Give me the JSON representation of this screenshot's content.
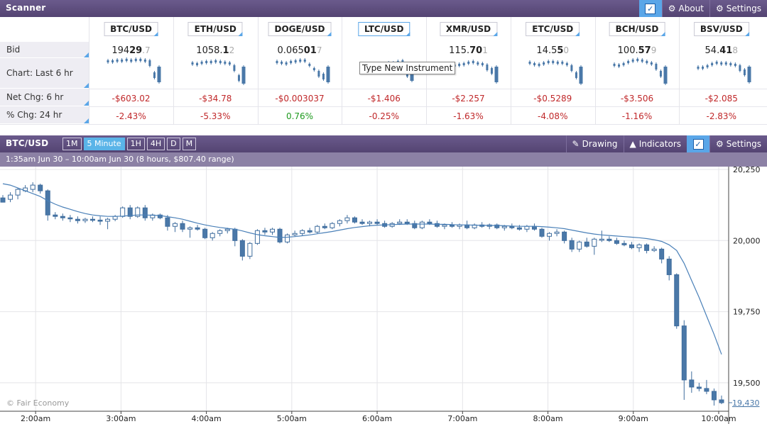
{
  "scanner": {
    "title": "Scanner",
    "about_label": "About",
    "settings_label": "Settings",
    "row_labels": {
      "bid": "Bid",
      "chart": "Chart: Last 6 hr",
      "net": "Net Chg: 6 hr",
      "pct": "% Chg: 24 hr"
    },
    "tooltip": "Type New Instrument",
    "instruments": [
      {
        "symbol": "BTC/USD",
        "bid_main": "194",
        "bid_bold": "29",
        "bid_pip": ".7",
        "net": "-$603.02",
        "pct": "-2.43%",
        "pct_dir": "neg",
        "spark": [
          5,
          5,
          4,
          4,
          3,
          4,
          3,
          3,
          4,
          5,
          22,
          30
        ]
      },
      {
        "symbol": "ETH/USD",
        "bid_main": "1058.",
        "bid_bold": "1",
        "bid_pip": "2",
        "net": "-$34.78",
        "pct": "-5.33%",
        "pct_dir": "neg",
        "spark": [
          8,
          9,
          7,
          6,
          6,
          5,
          6,
          7,
          8,
          12,
          26,
          32
        ]
      },
      {
        "symbol": "DOGE/USD",
        "bid_main": "0.065",
        "bid_bold": "01",
        "bid_pip": "7",
        "net": "-$0.003037",
        "pct": "0.76%",
        "pct_dir": "pos",
        "spark": [
          6,
          7,
          8,
          6,
          5,
          4,
          4,
          10,
          16,
          20,
          24,
          30
        ]
      },
      {
        "symbol": "LTC/USD",
        "bid_main": "",
        "bid_bold": "",
        "bid_pip": "",
        "net": "-$1.406",
        "pct": "-0.25%",
        "pct_dir": "neg",
        "spark": [
          12,
          12,
          11,
          10,
          10,
          9,
          8,
          8,
          6,
          5,
          20,
          28
        ]
      },
      {
        "symbol": "XMR/USD",
        "bid_main": "115.",
        "bid_bold": "70",
        "bid_pip": "1",
        "net": "-$2.257",
        "pct": "-1.63%",
        "pct_dir": "neg",
        "spark": [
          12,
          13,
          11,
          10,
          9,
          7,
          6,
          8,
          9,
          11,
          16,
          30
        ]
      },
      {
        "symbol": "ETC/USD",
        "bid_main": "14.5",
        "bid_bold": "5",
        "bid_pip": "0",
        "net": "-$0.5289",
        "pct": "-4.08%",
        "pct_dir": "neg",
        "spark": [
          7,
          9,
          10,
          8,
          6,
          6,
          7,
          7,
          9,
          12,
          22,
          32
        ]
      },
      {
        "symbol": "BCH/USD",
        "bid_main": "100.",
        "bid_bold": "57",
        "bid_pip": "9",
        "net": "-$3.506",
        "pct": "-1.16%",
        "pct_dir": "neg",
        "spark": [
          10,
          11,
          9,
          6,
          4,
          3,
          4,
          6,
          8,
          10,
          20,
          32
        ]
      },
      {
        "symbol": "BSV/USD",
        "bid_main": "54.",
        "bid_bold": "41",
        "bid_pip": "8",
        "net": "-$2.085",
        "pct": "-2.83%",
        "pct_dir": "neg",
        "spark": [
          14,
          14,
          12,
          9,
          7,
          8,
          8,
          9,
          10,
          12,
          18,
          30
        ]
      }
    ]
  },
  "chart_panel": {
    "symbol": "BTC/USD",
    "timeframes": [
      "1M",
      "5 Minute",
      "1H",
      "4H",
      "D",
      "M"
    ],
    "active_timeframe": "5 Minute",
    "drawing_label": "Drawing",
    "indicators_label": "Indicators",
    "settings_label": "Settings",
    "range_text": "1:35am Jun 30 – 10:00am Jun 30 (8 hours, $807.40 range)",
    "watermark": "© Fair Economy"
  },
  "chart_data": {
    "type": "candlestick",
    "ylim": [
      19400,
      20260
    ],
    "yticks": [
      "20,250",
      "20,000",
      "19,750",
      "19,500"
    ],
    "ytick_values": [
      20250,
      20000,
      19750,
      19500
    ],
    "last_price_label": "19,430",
    "last_price": 19430,
    "xticks": [
      "2:00am",
      "3:00am",
      "4:00am",
      "5:00am",
      "6:00am",
      "7:00am",
      "8:00am",
      "9:00am",
      "10:00am"
    ],
    "xtick_hours": [
      2,
      3,
      4,
      5,
      6,
      7,
      8,
      9,
      10
    ],
    "x_start_hour": 1.583,
    "x_end_hour": 10.0,
    "candles": [
      [
        20150,
        20160,
        20140,
        20135
      ],
      [
        20145,
        20170,
        20135,
        20160
      ],
      [
        20160,
        20185,
        20145,
        20180
      ],
      [
        20175,
        20195,
        20170,
        20185
      ],
      [
        20180,
        20205,
        20170,
        20195
      ],
      [
        20195,
        20200,
        20165,
        20175
      ],
      [
        20175,
        20180,
        20070,
        20090
      ],
      [
        20090,
        20100,
        20075,
        20085
      ],
      [
        20085,
        20095,
        20070,
        20080
      ],
      [
        20080,
        20090,
        20065,
        20078
      ],
      [
        20075,
        20085,
        20060,
        20070
      ],
      [
        20070,
        20080,
        20062,
        20075
      ],
      [
        20075,
        20085,
        20065,
        20072
      ],
      [
        20072,
        20085,
        20055,
        20068
      ],
      [
        20068,
        20080,
        20040,
        20075
      ],
      [
        20075,
        20090,
        20068,
        20085
      ],
      [
        20085,
        20120,
        20080,
        20115
      ],
      [
        20115,
        20125,
        20075,
        20085
      ],
      [
        20085,
        20120,
        20080,
        20115
      ],
      [
        20115,
        20125,
        20070,
        20080
      ],
      [
        20080,
        20095,
        20070,
        20090
      ],
      [
        20090,
        20095,
        20075,
        20080
      ],
      [
        20080,
        20090,
        20035,
        20050
      ],
      [
        20050,
        20065,
        20030,
        20060
      ],
      [
        20060,
        20070,
        20030,
        20040
      ],
      [
        20040,
        20050,
        20010,
        20045
      ],
      [
        20045,
        20055,
        20035,
        20040
      ],
      [
        20040,
        20045,
        20005,
        20010
      ],
      [
        20010,
        20030,
        20000,
        20025
      ],
      [
        20025,
        20040,
        20015,
        20035
      ],
      [
        20035,
        20045,
        20025,
        20040
      ],
      [
        20040,
        20045,
        19980,
        20000
      ],
      [
        20000,
        20005,
        19930,
        19945
      ],
      [
        19945,
        19995,
        19935,
        19990
      ],
      [
        19990,
        20040,
        19985,
        20035
      ],
      [
        20035,
        20045,
        20020,
        20030
      ],
      [
        20030,
        20045,
        20020,
        20040
      ],
      [
        20040,
        20045,
        19990,
        19995
      ],
      [
        19995,
        20025,
        19990,
        20020
      ],
      [
        20020,
        20035,
        20015,
        20025
      ],
      [
        20025,
        20040,
        20018,
        20035
      ],
      [
        20035,
        20045,
        20025,
        20030
      ],
      [
        20030,
        20055,
        20025,
        20050
      ],
      [
        20050,
        20060,
        20040,
        20045
      ],
      [
        20045,
        20065,
        20040,
        20060
      ],
      [
        20060,
        20075,
        20050,
        20070
      ],
      [
        20070,
        20090,
        20060,
        20080
      ],
      [
        20080,
        20085,
        20060,
        20065
      ],
      [
        20065,
        20075,
        20055,
        20060
      ],
      [
        20060,
        20070,
        20050,
        20065
      ],
      [
        20065,
        20075,
        20055,
        20060
      ],
      [
        20060,
        20070,
        20045,
        20050
      ],
      [
        20050,
        20065,
        20045,
        20060
      ],
      [
        20060,
        20075,
        20055,
        20065
      ],
      [
        20065,
        20075,
        20055,
        20060
      ],
      [
        20060,
        20070,
        20040,
        20045
      ],
      [
        20045,
        20070,
        20040,
        20065
      ],
      [
        20065,
        20075,
        20055,
        20060
      ],
      [
        20060,
        20070,
        20045,
        20050
      ],
      [
        20050,
        20060,
        20040,
        20055
      ],
      [
        20055,
        20065,
        20045,
        20050
      ],
      [
        20050,
        20060,
        20040,
        20055
      ],
      [
        20055,
        20070,
        20040,
        20045
      ],
      [
        20045,
        20060,
        20040,
        20055
      ],
      [
        20055,
        20065,
        20045,
        20050
      ],
      [
        20050,
        20060,
        20040,
        20055
      ],
      [
        20055,
        20060,
        20040,
        20045
      ],
      [
        20045,
        20055,
        20035,
        20050
      ],
      [
        20050,
        20060,
        20040,
        20045
      ],
      [
        20045,
        20055,
        20035,
        20040
      ],
      [
        20040,
        20055,
        20030,
        20050
      ],
      [
        20050,
        20060,
        20035,
        20040
      ],
      [
        20040,
        20045,
        20010,
        20015
      ],
      [
        20015,
        20030,
        20000,
        20025
      ],
      [
        20025,
        20040,
        20015,
        20030
      ],
      [
        20030,
        20035,
        19990,
        20000
      ],
      [
        20000,
        20010,
        19960,
        19970
      ],
      [
        19970,
        20000,
        19960,
        19995
      ],
      [
        19995,
        20010,
        19975,
        19980
      ],
      [
        19980,
        20010,
        19950,
        20005
      ],
      [
        20005,
        20035,
        19995,
        20005
      ],
      [
        20005,
        20015,
        19995,
        20000
      ],
      [
        20000,
        20010,
        19985,
        19990
      ],
      [
        19990,
        20000,
        19980,
        19985
      ],
      [
        19985,
        19995,
        19970,
        19975
      ],
      [
        19975,
        19990,
        19960,
        19985
      ],
      [
        19985,
        19990,
        19955,
        19965
      ],
      [
        19965,
        19980,
        19960,
        19970
      ],
      [
        19970,
        19975,
        19920,
        19935
      ],
      [
        19935,
        19945,
        19860,
        19880
      ],
      [
        19880,
        19885,
        19690,
        19700
      ],
      [
        19700,
        19720,
        19440,
        19510
      ],
      [
        19510,
        19540,
        19465,
        19485
      ],
      [
        19485,
        19500,
        19470,
        19480
      ],
      [
        19480,
        19510,
        19460,
        19470
      ],
      [
        19470,
        19480,
        19420,
        19440
      ],
      [
        19440,
        19455,
        19425,
        19430
      ]
    ],
    "ma": [
      20200,
      20195,
      20185,
      20175,
      20165,
      20155,
      20140,
      20128,
      20118,
      20110,
      20102,
      20095,
      20090,
      20087,
      20085,
      20085,
      20086,
      20088,
      20090,
      20090,
      20089,
      20088,
      20084,
      20080,
      20075,
      20068,
      20061,
      20055,
      20050,
      20046,
      20043,
      20040,
      20034,
      20027,
      20021,
      20017,
      20014,
      20011,
      20012,
      20014,
      20017,
      20020,
      20024,
      20028,
      20032,
      20037,
      20042,
      20046,
      20049,
      20052,
      20054,
      20055,
      20056,
      20057,
      20058,
      20058,
      20058,
      20058,
      20057,
      20057,
      20056,
      20055,
      20055,
      20054,
      20054,
      20053,
      20053,
      20052,
      20051,
      20050,
      20050,
      20050,
      20049,
      20047,
      20045,
      20042,
      20037,
      20032,
      20027,
      20023,
      20020,
      20018,
      20016,
      20014,
      20012,
      20010,
      20007,
      20003,
      19997,
      19985,
      19965,
      19920,
      19860,
      19800,
      19735,
      19670,
      19600
    ]
  }
}
